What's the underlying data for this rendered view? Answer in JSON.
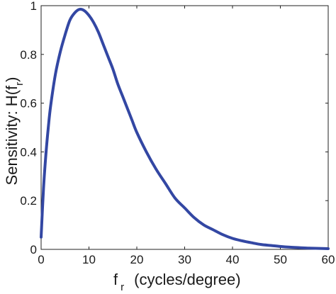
{
  "chart_data": {
    "type": "line",
    "xlabel": {
      "prefix": "f",
      "subscript": "r",
      "suffix": "(cycles/degree)"
    },
    "ylabel": {
      "prefix": "Sensitivity: H(f",
      "subscript": "r",
      "suffix": ")"
    },
    "xlim": [
      0,
      60
    ],
    "ylim": [
      0,
      1
    ],
    "x_ticks": [
      0,
      10,
      20,
      30,
      40,
      50,
      60
    ],
    "y_ticks": [
      0,
      0.2,
      0.4,
      0.6,
      0.8,
      1
    ],
    "x_tick_labels": [
      "0",
      "10",
      "20",
      "30",
      "40",
      "50",
      "60"
    ],
    "y_tick_labels": [
      "0",
      "0.2",
      "0.4",
      "0.6",
      "0.8",
      "1"
    ],
    "grid": false,
    "series": [
      {
        "color": "#3347a3",
        "x": [
          0,
          0.5,
          1,
          1.5,
          2,
          3,
          4,
          5,
          6,
          7,
          8,
          9,
          10,
          11,
          12,
          13,
          14,
          15,
          16,
          17,
          18,
          19,
          20,
          22,
          24,
          26,
          28,
          30,
          32,
          34,
          36,
          38,
          40,
          42,
          44,
          46,
          48,
          50,
          52,
          54,
          56,
          58,
          60
        ],
        "y": [
          0.05,
          0.25,
          0.39,
          0.5,
          0.59,
          0.72,
          0.81,
          0.88,
          0.94,
          0.97,
          0.985,
          0.98,
          0.96,
          0.93,
          0.89,
          0.84,
          0.79,
          0.74,
          0.68,
          0.63,
          0.58,
          0.53,
          0.48,
          0.4,
          0.33,
          0.27,
          0.21,
          0.17,
          0.13,
          0.1,
          0.08,
          0.06,
          0.045,
          0.035,
          0.027,
          0.02,
          0.016,
          0.012,
          0.009,
          0.007,
          0.005,
          0.004,
          0.003
        ]
      }
    ]
  }
}
